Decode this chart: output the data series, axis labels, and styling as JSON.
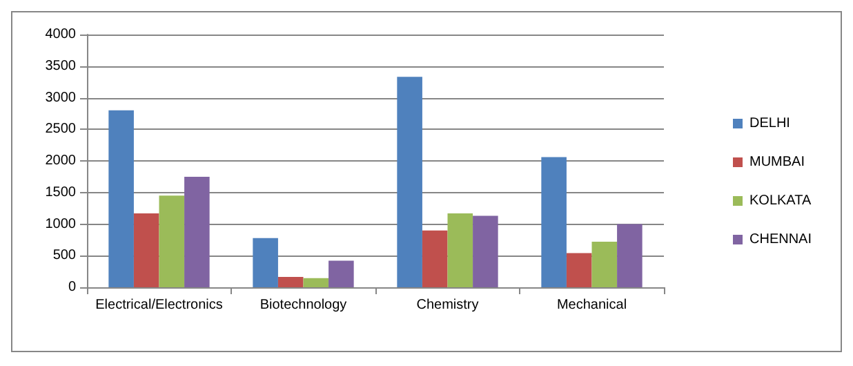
{
  "chart_data": {
    "type": "bar",
    "categories": [
      "Electrical/Electronics",
      "Biotechnology",
      "Chemistry",
      "Mechanical"
    ],
    "series": [
      {
        "name": "DELHI",
        "color": "#4f81bd",
        "values": [
          2800,
          780,
          3330,
          2060
        ]
      },
      {
        "name": "MUMBAI",
        "color": "#c0504d",
        "values": [
          1170,
          165,
          900,
          540
        ]
      },
      {
        "name": "KOLKATA",
        "color": "#9bbb59",
        "values": [
          1450,
          145,
          1170,
          720
        ]
      },
      {
        "name": "CHENNAI",
        "color": "#8064a2",
        "values": [
          1750,
          420,
          1130,
          1000
        ]
      }
    ],
    "ylim": [
      0,
      4000
    ],
    "yticks": [
      0,
      500,
      1000,
      1500,
      2000,
      2500,
      3000,
      3500,
      4000
    ],
    "grid": "y",
    "legend": "right"
  }
}
